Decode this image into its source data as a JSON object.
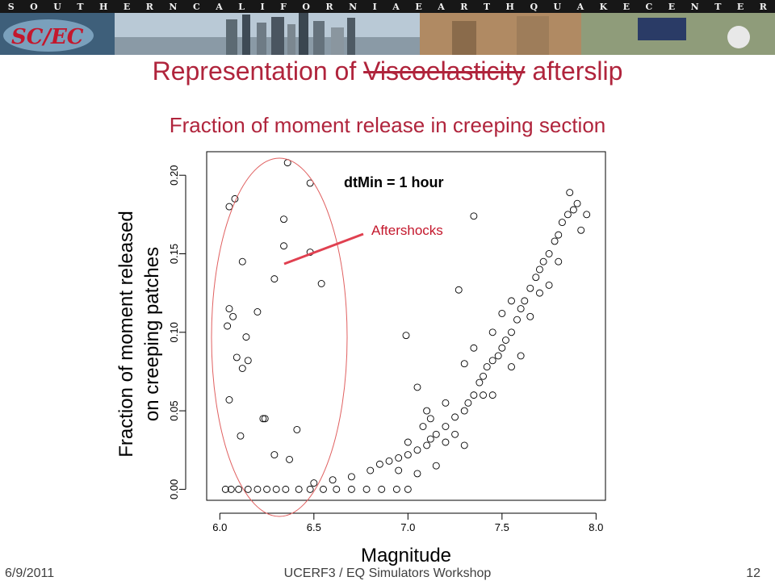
{
  "banner": {
    "text": [
      "S",
      "O",
      "U",
      "T",
      "H",
      "E",
      "R",
      "N",
      "C",
      "A",
      "L",
      "I",
      "F",
      "O",
      "R",
      "N",
      "I",
      "A",
      "E",
      "A",
      "R",
      "T",
      "H",
      "Q",
      "U",
      "A",
      "K",
      "E",
      "C",
      "E",
      "N",
      "T",
      "E",
      "R"
    ],
    "logo_text": "SCEC"
  },
  "slide": {
    "title_before": "Representation of ",
    "title_struck": "Viscoelasticity",
    "title_after": " afterslip",
    "subtitle": "Fraction of moment release in creeping section"
  },
  "footer": {
    "date": "6/9/2011",
    "event": "UCERF3 / EQ Simulators Workshop",
    "page": "12"
  },
  "colors": {
    "title": "#b0243c",
    "ellipse": "#e06060",
    "points": "#000000",
    "annotation_line": "#e04050"
  },
  "chart_data": {
    "type": "scatter",
    "xlabel": "Magnitude",
    "ylabel_lines": [
      "Fraction of moment released",
      "on creeping patches"
    ],
    "x_ticks": [
      "6.0",
      "6.5",
      "7.0",
      "7.5",
      "8.0"
    ],
    "y_ticks": [
      "0.00",
      "0.05",
      "0.10",
      "0.15",
      "0.20"
    ],
    "xlim": [
      5.93,
      8.05
    ],
    "ylim": [
      -0.007,
      0.215
    ],
    "in_plot_label": "dtMin = 1 hour",
    "annotation": "Aftershocks",
    "grid": false,
    "aftershock_points": [
      [
        6.05,
        0.18
      ],
      [
        6.08,
        0.185
      ],
      [
        6.12,
        0.145
      ],
      [
        6.05,
        0.115
      ],
      [
        6.07,
        0.11
      ],
      [
        6.04,
        0.104
      ],
      [
        6.14,
        0.097
      ],
      [
        6.09,
        0.084
      ],
      [
        6.15,
        0.082
      ],
      [
        6.12,
        0.077
      ],
      [
        6.2,
        0.113
      ],
      [
        6.05,
        0.057
      ],
      [
        6.11,
        0.034
      ],
      [
        6.23,
        0.045
      ],
      [
        6.24,
        0.045
      ],
      [
        6.29,
        0.134
      ],
      [
        6.34,
        0.172
      ],
      [
        6.34,
        0.155
      ],
      [
        6.36,
        0.208
      ],
      [
        6.48,
        0.195
      ],
      [
        6.48,
        0.151
      ],
      [
        6.54,
        0.131
      ],
      [
        6.41,
        0.038
      ],
      [
        6.37,
        0.019
      ],
      [
        6.29,
        0.022
      ]
    ],
    "zero_band_points": [
      [
        6.03,
        0.0
      ],
      [
        6.06,
        0.0
      ],
      [
        6.1,
        0.0
      ],
      [
        6.15,
        0.0
      ],
      [
        6.2,
        0.0
      ],
      [
        6.25,
        0.0
      ],
      [
        6.3,
        0.0
      ],
      [
        6.35,
        0.0
      ],
      [
        6.42,
        0.0
      ],
      [
        6.48,
        0.0
      ],
      [
        6.55,
        0.0
      ],
      [
        6.62,
        0.0
      ],
      [
        6.7,
        0.0
      ],
      [
        6.78,
        0.0
      ],
      [
        6.86,
        0.0
      ],
      [
        6.94,
        0.0
      ],
      [
        7.0,
        0.0
      ]
    ],
    "main_trend_points": [
      [
        6.5,
        0.004
      ],
      [
        6.6,
        0.006
      ],
      [
        6.7,
        0.008
      ],
      [
        6.8,
        0.012
      ],
      [
        6.85,
        0.016
      ],
      [
        6.9,
        0.018
      ],
      [
        6.95,
        0.02
      ],
      [
        7.0,
        0.022
      ],
      [
        7.05,
        0.025
      ],
      [
        7.1,
        0.028
      ],
      [
        7.12,
        0.032
      ],
      [
        7.15,
        0.035
      ],
      [
        7.2,
        0.04
      ],
      [
        7.25,
        0.046
      ],
      [
        7.3,
        0.05
      ],
      [
        7.32,
        0.055
      ],
      [
        7.35,
        0.06
      ],
      [
        7.38,
        0.068
      ],
      [
        7.4,
        0.072
      ],
      [
        7.42,
        0.078
      ],
      [
        7.45,
        0.082
      ],
      [
        7.48,
        0.085
      ],
      [
        7.5,
        0.09
      ],
      [
        7.52,
        0.095
      ],
      [
        7.55,
        0.1
      ],
      [
        7.58,
        0.108
      ],
      [
        7.6,
        0.115
      ],
      [
        7.62,
        0.12
      ],
      [
        7.65,
        0.128
      ],
      [
        7.68,
        0.135
      ],
      [
        7.7,
        0.14
      ],
      [
        7.72,
        0.145
      ],
      [
        7.75,
        0.15
      ],
      [
        7.78,
        0.158
      ],
      [
        7.8,
        0.162
      ],
      [
        7.82,
        0.17
      ],
      [
        7.85,
        0.175
      ],
      [
        7.88,
        0.178
      ],
      [
        7.9,
        0.182
      ],
      [
        7.95,
        0.175
      ],
      [
        7.86,
        0.189
      ],
      [
        7.92,
        0.165
      ],
      [
        7.35,
        0.174
      ],
      [
        7.27,
        0.127
      ],
      [
        6.99,
        0.098
      ],
      [
        7.05,
        0.065
      ],
      [
        7.1,
        0.05
      ],
      [
        7.2,
        0.055
      ],
      [
        7.3,
        0.028
      ],
      [
        7.4,
        0.06
      ],
      [
        7.45,
        0.06
      ],
      [
        7.55,
        0.078
      ],
      [
        7.6,
        0.085
      ],
      [
        7.65,
        0.11
      ],
      [
        7.7,
        0.125
      ],
      [
        7.75,
        0.13
      ],
      [
        7.8,
        0.145
      ],
      [
        7.45,
        0.1
      ],
      [
        7.5,
        0.112
      ],
      [
        7.55,
        0.12
      ],
      [
        7.35,
        0.09
      ],
      [
        7.3,
        0.08
      ],
      [
        7.25,
        0.035
      ],
      [
        7.2,
        0.03
      ],
      [
        7.15,
        0.015
      ],
      [
        7.05,
        0.01
      ],
      [
        6.95,
        0.012
      ],
      [
        7.0,
        0.03
      ],
      [
        7.08,
        0.04
      ],
      [
        7.12,
        0.045
      ]
    ]
  }
}
